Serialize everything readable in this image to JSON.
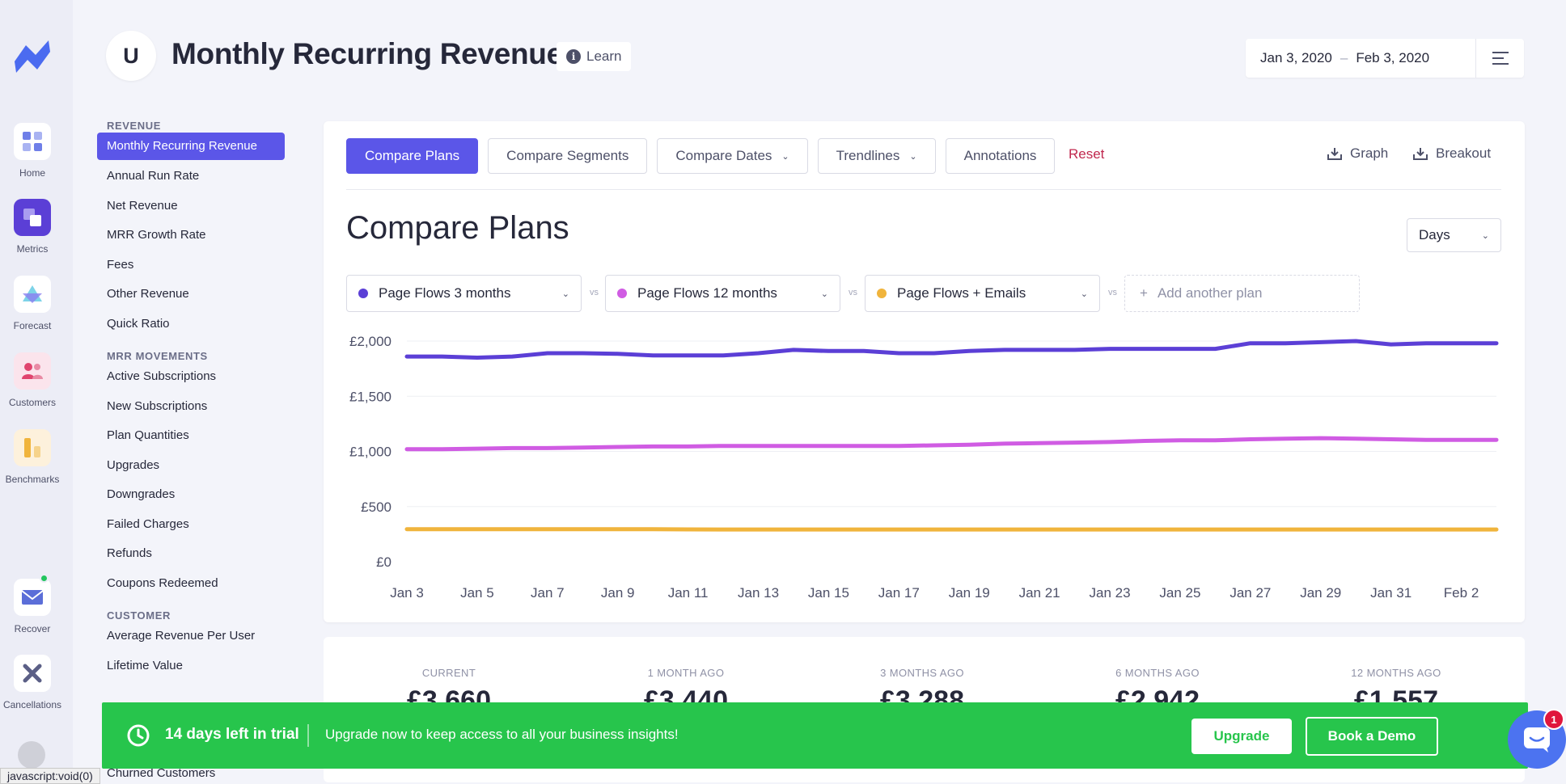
{
  "app": {
    "page_title": "Monthly Recurring Revenue",
    "avatar_letter": "U",
    "learn_label": "Learn"
  },
  "date_range": {
    "start": "Jan 3, 2020",
    "separator": "–",
    "end": "Feb 3, 2020"
  },
  "rail": [
    {
      "id": "home",
      "label": "Home"
    },
    {
      "id": "metrics",
      "label": "Metrics"
    },
    {
      "id": "forecast",
      "label": "Forecast"
    },
    {
      "id": "customers",
      "label": "Customers"
    },
    {
      "id": "benchmarks",
      "label": "Benchmarks"
    },
    {
      "id": "recover",
      "label": "Recover"
    },
    {
      "id": "cancellations",
      "label": "Cancellations"
    }
  ],
  "nav": {
    "revenue_title": "REVENUE",
    "revenue_items": [
      "Monthly Recurring Revenue",
      "Annual Run Rate",
      "Net Revenue",
      "MRR Growth Rate",
      "Fees",
      "Other Revenue",
      "Quick Ratio"
    ],
    "movements_title": "MRR MOVEMENTS",
    "movements_items": [
      "Active Subscriptions",
      "New Subscriptions",
      "Plan Quantities",
      "Upgrades",
      "Downgrades",
      "Failed Charges",
      "Refunds",
      "Coupons Redeemed"
    ],
    "customer_title": "CUSTOMER",
    "customer_items": [
      "Average Revenue Per User",
      "Lifetime Value"
    ],
    "churned_item": "Churned Customers"
  },
  "toolbar": {
    "compare_plans": "Compare Plans",
    "compare_segments": "Compare Segments",
    "compare_dates": "Compare Dates",
    "trendlines": "Trendlines",
    "annotations": "Annotations",
    "reset": "Reset",
    "graph": "Graph",
    "breakout": "Breakout"
  },
  "section": {
    "title": "Compare Plans",
    "interval": "Days"
  },
  "plans": {
    "vs_label": "vs",
    "add_label": "Add another plan",
    "items": [
      {
        "name": "Page Flows 3 months",
        "color": "#5b3fd6"
      },
      {
        "name": "Page Flows 12 months",
        "color": "#d05ce3"
      },
      {
        "name": "Page Flows + Emails",
        "color": "#f0b43c"
      }
    ]
  },
  "chart_data": {
    "type": "line",
    "x": [
      "Jan 3",
      "Jan 4",
      "Jan 5",
      "Jan 6",
      "Jan 7",
      "Jan 8",
      "Jan 9",
      "Jan 10",
      "Jan 11",
      "Jan 12",
      "Jan 13",
      "Jan 14",
      "Jan 15",
      "Jan 16",
      "Jan 17",
      "Jan 18",
      "Jan 19",
      "Jan 20",
      "Jan 21",
      "Jan 22",
      "Jan 23",
      "Jan 24",
      "Jan 25",
      "Jan 26",
      "Jan 27",
      "Jan 28",
      "Jan 29",
      "Jan 30",
      "Jan 31",
      "Feb 1",
      "Feb 2",
      "Feb 3"
    ],
    "x_tick_labels": [
      "Jan 3",
      "Jan 5",
      "Jan 7",
      "Jan 9",
      "Jan 11",
      "Jan 13",
      "Jan 15",
      "Jan 17",
      "Jan 19",
      "Jan 21",
      "Jan 23",
      "Jan 25",
      "Jan 27",
      "Jan 29",
      "Jan 31",
      "Feb 2"
    ],
    "y_tick_labels": [
      "£0",
      "£500",
      "£1,000",
      "£1,500",
      "£2,000"
    ],
    "ylim": [
      0,
      2000
    ],
    "grid": true,
    "series": [
      {
        "name": "Page Flows 3 months",
        "color": "#5b3fd6",
        "values": [
          1860,
          1860,
          1850,
          1860,
          1890,
          1890,
          1885,
          1870,
          1870,
          1870,
          1890,
          1920,
          1910,
          1910,
          1890,
          1890,
          1910,
          1920,
          1920,
          1920,
          1930,
          1930,
          1930,
          1930,
          1980,
          1980,
          1990,
          2000,
          1970,
          1980,
          1980,
          1980
        ]
      },
      {
        "name": "Page Flows 12 months",
        "color": "#d05ce3",
        "values": [
          1020,
          1020,
          1025,
          1030,
          1030,
          1035,
          1040,
          1045,
          1045,
          1050,
          1050,
          1050,
          1050,
          1050,
          1050,
          1055,
          1060,
          1070,
          1075,
          1080,
          1085,
          1095,
          1100,
          1100,
          1110,
          1115,
          1120,
          1115,
          1110,
          1105,
          1105,
          1105
        ]
      },
      {
        "name": "Page Flows + Emails",
        "color": "#f0b43c",
        "values": [
          295,
          295,
          295,
          295,
          295,
          295,
          295,
          295,
          293,
          292,
          292,
          292,
          292,
          292,
          292,
          292,
          292,
          292,
          292,
          292,
          292,
          292,
          292,
          292,
          292,
          292,
          292,
          292,
          292,
          292,
          292,
          292
        ]
      }
    ]
  },
  "stats": [
    {
      "label": "CURRENT",
      "value": "£3,660"
    },
    {
      "label": "1 MONTH AGO",
      "value": "£3,440"
    },
    {
      "label": "3 MONTHS AGO",
      "value": "£3,288"
    },
    {
      "label": "6 MONTHS AGO",
      "value": "£2,942"
    },
    {
      "label": "12 MONTHS AGO",
      "value": "£1,557"
    }
  ],
  "trial": {
    "days_left": "14 days left in trial",
    "message": "Upgrade now to keep access to all your business insights!",
    "upgrade": "Upgrade",
    "book_demo": "Book a Demo"
  },
  "chat": {
    "badge": "1"
  },
  "status_url": "javascript:void(0)"
}
